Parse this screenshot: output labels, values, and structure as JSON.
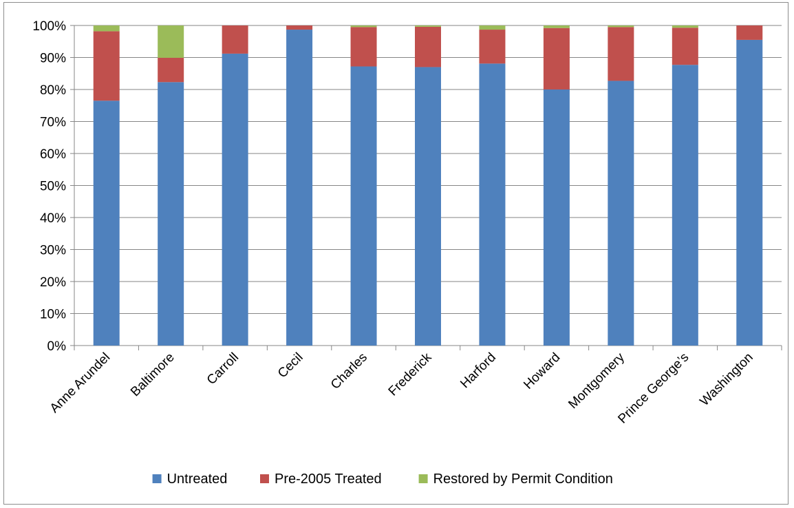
{
  "chart_data": {
    "type": "bar",
    "stacked": true,
    "title": "",
    "xlabel": "",
    "ylabel": "",
    "ylim": [
      0,
      100
    ],
    "y_ticks": [
      "0%",
      "10%",
      "20%",
      "30%",
      "40%",
      "50%",
      "60%",
      "70%",
      "80%",
      "90%",
      "100%"
    ],
    "grid": true,
    "legend_position": "bottom",
    "categories": [
      "Anne Arundel",
      "Baltimore",
      "Carroll",
      "Cecil",
      "Charles",
      "Frederick",
      "Harford",
      "Howard",
      "Montgomery",
      "Prince George’s",
      "Washington"
    ],
    "series": [
      {
        "name": "Untreated",
        "color": "#4f81bd",
        "values": [
          76.5,
          82.3,
          91.2,
          98.7,
          87.2,
          87.0,
          88.1,
          80.0,
          82.7,
          87.7,
          95.5
        ]
      },
      {
        "name": "Pre-2005 Treated",
        "color": "#c0504d",
        "values": [
          21.7,
          7.6,
          8.8,
          1.3,
          12.3,
          12.6,
          10.6,
          19.2,
          16.8,
          11.6,
          4.5
        ]
      },
      {
        "name": "Restored by Permit Condition",
        "color": "#9bbb59",
        "values": [
          1.8,
          10.1,
          0.0,
          0.0,
          0.5,
          0.4,
          1.3,
          0.8,
          0.5,
          0.7,
          0.0
        ]
      }
    ]
  }
}
